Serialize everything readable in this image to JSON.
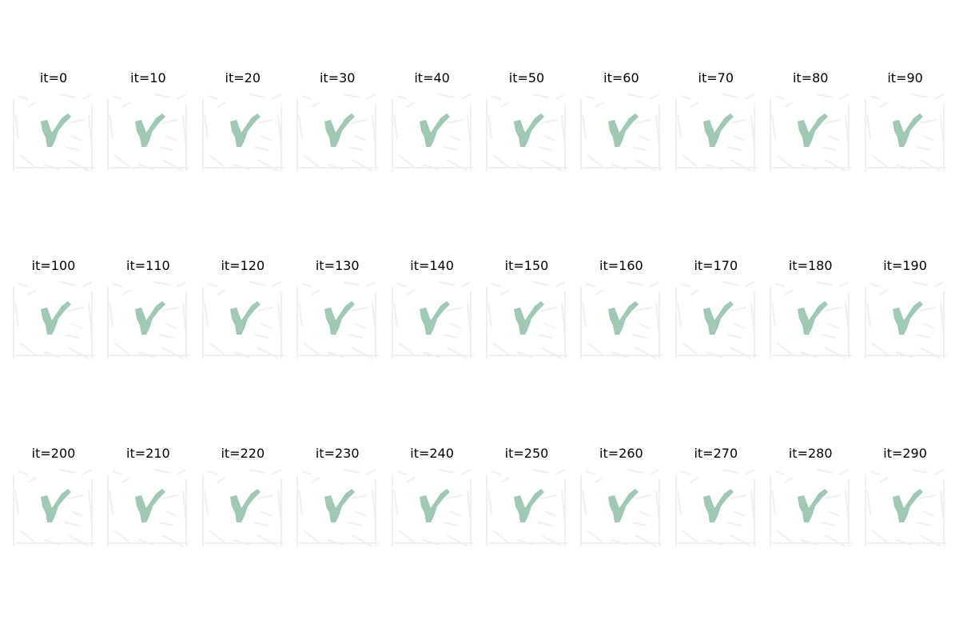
{
  "figure": {
    "panels": [
      {
        "title": "it=0"
      },
      {
        "title": "it=10"
      },
      {
        "title": "it=20"
      },
      {
        "title": "it=30"
      },
      {
        "title": "it=40"
      },
      {
        "title": "it=50"
      },
      {
        "title": "it=60"
      },
      {
        "title": "it=70"
      },
      {
        "title": "it=80"
      },
      {
        "title": "it=90"
      },
      {
        "title": "it=100"
      },
      {
        "title": "it=110"
      },
      {
        "title": "it=120"
      },
      {
        "title": "it=130"
      },
      {
        "title": "it=140"
      },
      {
        "title": "it=150"
      },
      {
        "title": "it=160"
      },
      {
        "title": "it=170"
      },
      {
        "title": "it=180"
      },
      {
        "title": "it=190"
      },
      {
        "title": "it=200"
      },
      {
        "title": "it=210"
      },
      {
        "title": "it=220"
      },
      {
        "title": "it=230"
      },
      {
        "title": "it=240"
      },
      {
        "title": "it=250"
      },
      {
        "title": "it=260"
      },
      {
        "title": "it=270"
      },
      {
        "title": "it=280"
      },
      {
        "title": "it=290"
      }
    ],
    "colors": {
      "glyph": "#9fc9b5",
      "background_noise": "#f1eef4",
      "title_text": "#000000"
    }
  }
}
